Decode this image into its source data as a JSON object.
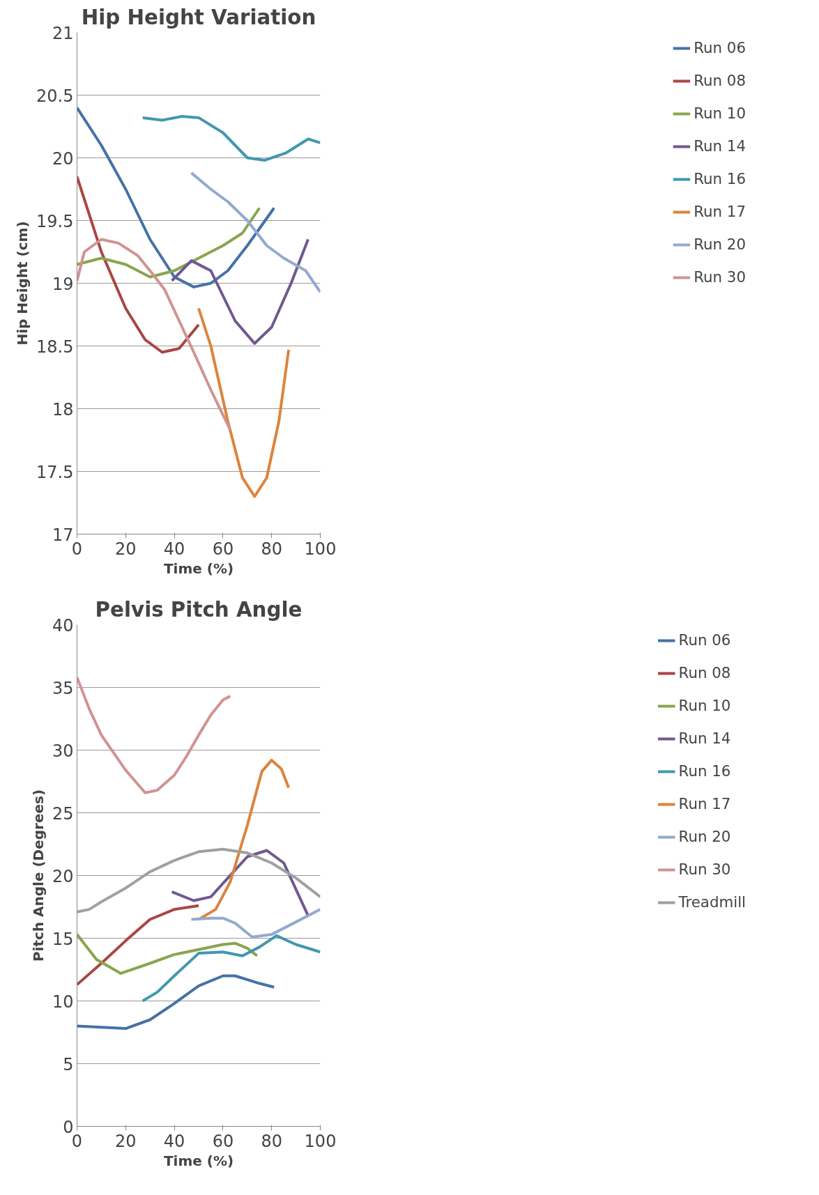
{
  "chart_data": [
    {
      "type": "line",
      "title": "Hip Height Variation",
      "xlabel": "Time (%)",
      "ylabel": "Hip Height (cm)",
      "xlim": [
        0,
        100
      ],
      "xticks": [
        0,
        20,
        40,
        60,
        80,
        100
      ],
      "ylim": [
        17,
        21
      ],
      "yticks": [
        17,
        17.5,
        18,
        18.5,
        19,
        19.5,
        20,
        20.5,
        21
      ],
      "grid": "y",
      "legend": "right",
      "marker": "none",
      "line_style": "solid",
      "series": [
        {
          "name": "Run 06",
          "color": "#4572a7",
          "x": [
            0,
            10,
            20,
            30,
            40,
            48,
            55,
            62,
            70,
            81
          ],
          "values": [
            20.4,
            20.1,
            19.75,
            19.35,
            19.05,
            18.97,
            19.0,
            19.1,
            19.3,
            19.6
          ]
        },
        {
          "name": "Run 08",
          "color": "#aa4643",
          "x": [
            0,
            10,
            20,
            28,
            35,
            42,
            50
          ],
          "values": [
            19.85,
            19.25,
            18.8,
            18.55,
            18.45,
            18.48,
            18.67
          ]
        },
        {
          "name": "Run 10",
          "color": "#89a54e",
          "x": [
            0,
            10,
            20,
            30,
            40,
            50,
            60,
            68,
            75
          ],
          "values": [
            19.15,
            19.2,
            19.15,
            19.05,
            19.1,
            19.2,
            19.3,
            19.4,
            19.6
          ]
        },
        {
          "name": "Run 14",
          "color": "#71588f",
          "x": [
            39,
            47,
            55,
            65,
            73,
            80,
            88,
            95
          ],
          "values": [
            19.02,
            19.18,
            19.1,
            18.7,
            18.52,
            18.65,
            19.0,
            19.35
          ]
        },
        {
          "name": "Run 16",
          "color": "#4198af",
          "x": [
            27,
            35,
            43,
            50,
            60,
            70,
            77,
            86,
            95,
            100
          ],
          "values": [
            20.32,
            20.3,
            20.33,
            20.32,
            20.2,
            20.0,
            19.98,
            20.04,
            20.15,
            20.12
          ]
        },
        {
          "name": "Run 17",
          "color": "#db843d",
          "x": [
            50,
            55,
            62,
            68,
            73,
            78,
            83,
            87
          ],
          "values": [
            18.8,
            18.5,
            17.9,
            17.45,
            17.3,
            17.45,
            17.9,
            18.47
          ]
        },
        {
          "name": "Run 20",
          "color": "#93a9cf",
          "x": [
            47,
            55,
            62,
            70,
            78,
            85,
            94,
            100
          ],
          "values": [
            19.88,
            19.75,
            19.65,
            19.5,
            19.3,
            19.2,
            19.1,
            18.93
          ]
        },
        {
          "name": "Run 30",
          "color": "#d19392",
          "x": [
            0,
            3,
            10,
            17,
            25,
            30,
            36,
            42,
            48,
            55,
            63
          ],
          "values": [
            19.02,
            19.25,
            19.35,
            19.32,
            19.22,
            19.1,
            18.95,
            18.7,
            18.45,
            18.15,
            17.83
          ]
        }
      ]
    },
    {
      "type": "line",
      "title": "Pelvis Pitch Angle",
      "xlabel": "Time (%)",
      "ylabel": "Pitch Angle (Degrees)",
      "xlim": [
        0,
        100
      ],
      "xticks": [
        0,
        20,
        40,
        60,
        80,
        100
      ],
      "ylim": [
        0,
        40
      ],
      "yticks": [
        0,
        5,
        10,
        15,
        20,
        25,
        30,
        35,
        40
      ],
      "grid": "y",
      "legend": "right",
      "marker": "none",
      "line_style": "solid",
      "series": [
        {
          "name": "Run 06",
          "color": "#4572a7",
          "x": [
            0,
            10,
            20,
            30,
            40,
            50,
            60,
            65,
            75,
            81
          ],
          "values": [
            8,
            7.9,
            7.8,
            8.5,
            9.8,
            11.2,
            12,
            12,
            11.4,
            11.1
          ]
        },
        {
          "name": "Run 08",
          "color": "#aa4643",
          "x": [
            0,
            10,
            20,
            30,
            40,
            50
          ],
          "values": [
            11.3,
            13,
            14.8,
            16.5,
            17.3,
            17.6
          ]
        },
        {
          "name": "Run 10",
          "color": "#89a54e",
          "x": [
            0,
            8,
            18,
            30,
            40,
            50,
            60,
            65,
            70,
            74
          ],
          "values": [
            15.3,
            13.3,
            12.2,
            13,
            13.7,
            14.1,
            14.5,
            14.6,
            14.2,
            13.6
          ]
        },
        {
          "name": "Run 14",
          "color": "#71588f",
          "x": [
            39,
            48,
            55,
            62,
            70,
            78,
            85,
            95
          ],
          "values": [
            18.7,
            18,
            18.3,
            19.8,
            21.5,
            22,
            21,
            16.8
          ]
        },
        {
          "name": "Run 16",
          "color": "#4198af",
          "x": [
            27,
            33,
            40,
            50,
            60,
            68,
            75,
            82,
            90,
            100
          ],
          "values": [
            10,
            10.7,
            12,
            13.8,
            13.9,
            13.6,
            14.3,
            15.2,
            14.5,
            13.9
          ]
        },
        {
          "name": "Run 17",
          "color": "#db843d",
          "x": [
            50,
            57,
            63,
            70,
            76,
            80,
            84,
            87
          ],
          "values": [
            16.5,
            17.3,
            19.5,
            24,
            28.3,
            29.2,
            28.5,
            27
          ]
        },
        {
          "name": "Run 20",
          "color": "#93a9cf",
          "x": [
            47,
            55,
            60,
            65,
            72,
            80,
            90,
            100
          ],
          "values": [
            16.5,
            16.6,
            16.6,
            16.2,
            15.1,
            15.3,
            16.3,
            17.3
          ]
        },
        {
          "name": "Run 30",
          "color": "#d19392",
          "x": [
            0,
            5,
            10,
            15,
            20,
            28,
            33,
            40,
            45,
            50,
            55,
            60,
            63
          ],
          "values": [
            35.8,
            33.3,
            31.2,
            29.8,
            28.4,
            26.6,
            26.8,
            28,
            29.5,
            31.2,
            32.8,
            34,
            34.3
          ]
        },
        {
          "name": "Treadmill",
          "color": "#a0a0a0",
          "x": [
            0,
            5,
            10,
            20,
            30,
            40,
            50,
            60,
            70,
            80,
            90,
            100
          ],
          "values": [
            17.1,
            17.3,
            17.9,
            19,
            20.3,
            21.2,
            21.9,
            22.1,
            21.8,
            21,
            19.8,
            18.3
          ]
        }
      ]
    }
  ]
}
